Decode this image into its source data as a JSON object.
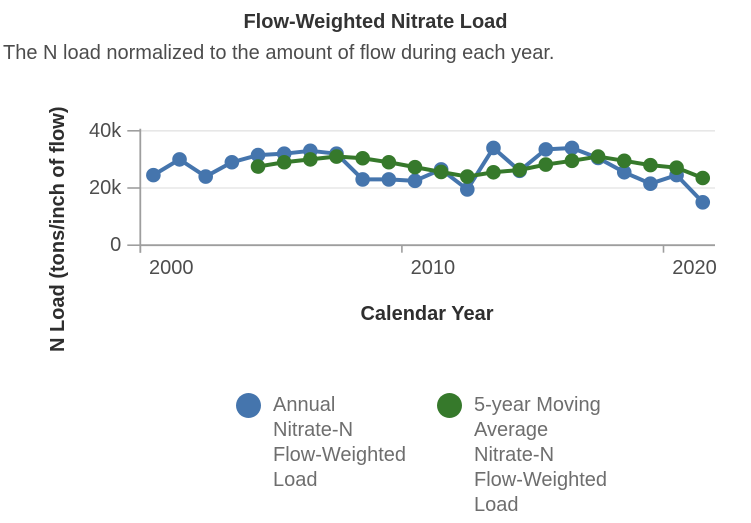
{
  "header": {
    "title": "Flow-Weighted Nitrate Load",
    "subtitle": "The N load normalized to the amount of flow during each year."
  },
  "axes": {
    "y": {
      "label": "N Load (tons/inch of flow)",
      "ticks": [
        {
          "label": "0",
          "value": 0
        },
        {
          "label": "20k",
          "value": 20000
        },
        {
          "label": "40k",
          "value": 40000
        }
      ]
    },
    "x": {
      "label": "Calendar Year",
      "ticks": [
        {
          "label": "2000",
          "year": 2000
        },
        {
          "label": "2010",
          "year": 2010
        },
        {
          "label": "2020",
          "year": 2020
        }
      ]
    }
  },
  "legend": [
    {
      "label": "Annual\nNitrate-N\nFlow-Weighted\nLoad",
      "color": "#4575ad"
    },
    {
      "label": "5-year Moving\nAverage\nNitrate-N\nFlow-Weighted\nLoad",
      "color": "#36792b"
    }
  ],
  "colors": {
    "annual_series": "#4575ad",
    "moving_average_series": "#36792b",
    "gridline": "#e7e7e7",
    "axis": "#9e9e9e",
    "tick_text": "#4d4d4d"
  },
  "chart_data": {
    "type": "line",
    "title": "Flow-Weighted Nitrate Load",
    "subtitle": "The N load normalized to the amount of flow during each year.",
    "xlabel": "Calendar Year",
    "ylabel": "N Load (tons/inch of flow)",
    "ylim": [
      0,
      40000
    ],
    "xlim": [
      2000,
      2022
    ],
    "grid": true,
    "legend_position": "bottom",
    "series": [
      {
        "name": "Annual Nitrate-N Flow-Weighted Load",
        "color": "#4575ad",
        "years": [
          2000,
          2001,
          2002,
          2003,
          2004,
          2005,
          2006,
          2007,
          2008,
          2009,
          2010,
          2011,
          2012,
          2013,
          2014,
          2015,
          2016,
          2017,
          2018,
          2019,
          2020,
          2021
        ],
        "values": [
          24500,
          30000,
          24000,
          29000,
          31500,
          32000,
          33000,
          32000,
          23000,
          23000,
          22500,
          26500,
          19500,
          34000,
          26000,
          33500,
          34000,
          30500,
          25500,
          21500,
          24500,
          15000
        ]
      },
      {
        "name": "5-year Moving Average Nitrate-N Flow-Weighted Load",
        "color": "#36792b",
        "years": [
          2004,
          2005,
          2006,
          2007,
          2008,
          2009,
          2010,
          2011,
          2012,
          2013,
          2014,
          2015,
          2016,
          2017,
          2018,
          2019,
          2020,
          2021
        ],
        "values": [
          27500,
          29000,
          30000,
          31000,
          30400,
          29000,
          27300,
          25600,
          24000,
          25500,
          26300,
          28200,
          29500,
          31000,
          29500,
          28000,
          27100,
          23500
        ]
      }
    ]
  }
}
